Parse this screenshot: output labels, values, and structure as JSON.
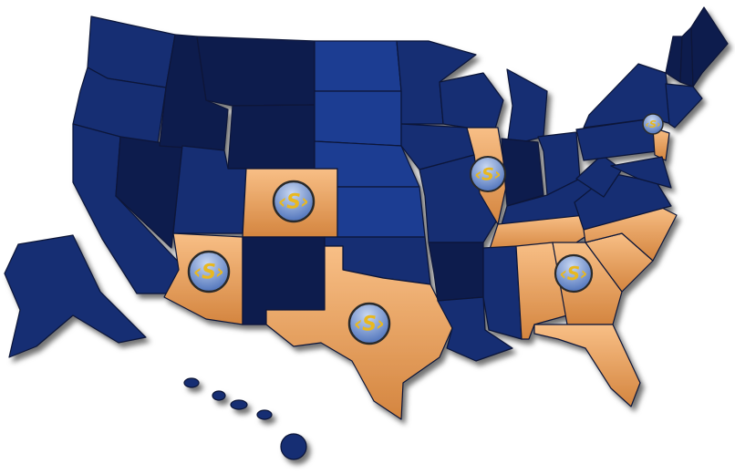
{
  "map": {
    "colors": {
      "dark": "#0c1b4d",
      "mid": "#132d73",
      "light": "#1c3d92",
      "highlight_top": "#f8bf86",
      "highlight_bottom": "#d4853f",
      "marker_top": "#c9d8f2",
      "marker_bottom": "#3f66b4",
      "logo": "#e8b820"
    },
    "marker_icon": "company-logo-icon",
    "highlighted_states": [
      "Arizona",
      "Colorado",
      "Texas",
      "Illinois",
      "New Jersey",
      "Tennessee",
      "Alabama",
      "Georgia",
      "South Carolina",
      "North Carolina",
      "Florida"
    ],
    "markers": [
      "Colorado",
      "Arizona",
      "Texas",
      "Illinois",
      "Georgia",
      "New Jersey"
    ]
  }
}
